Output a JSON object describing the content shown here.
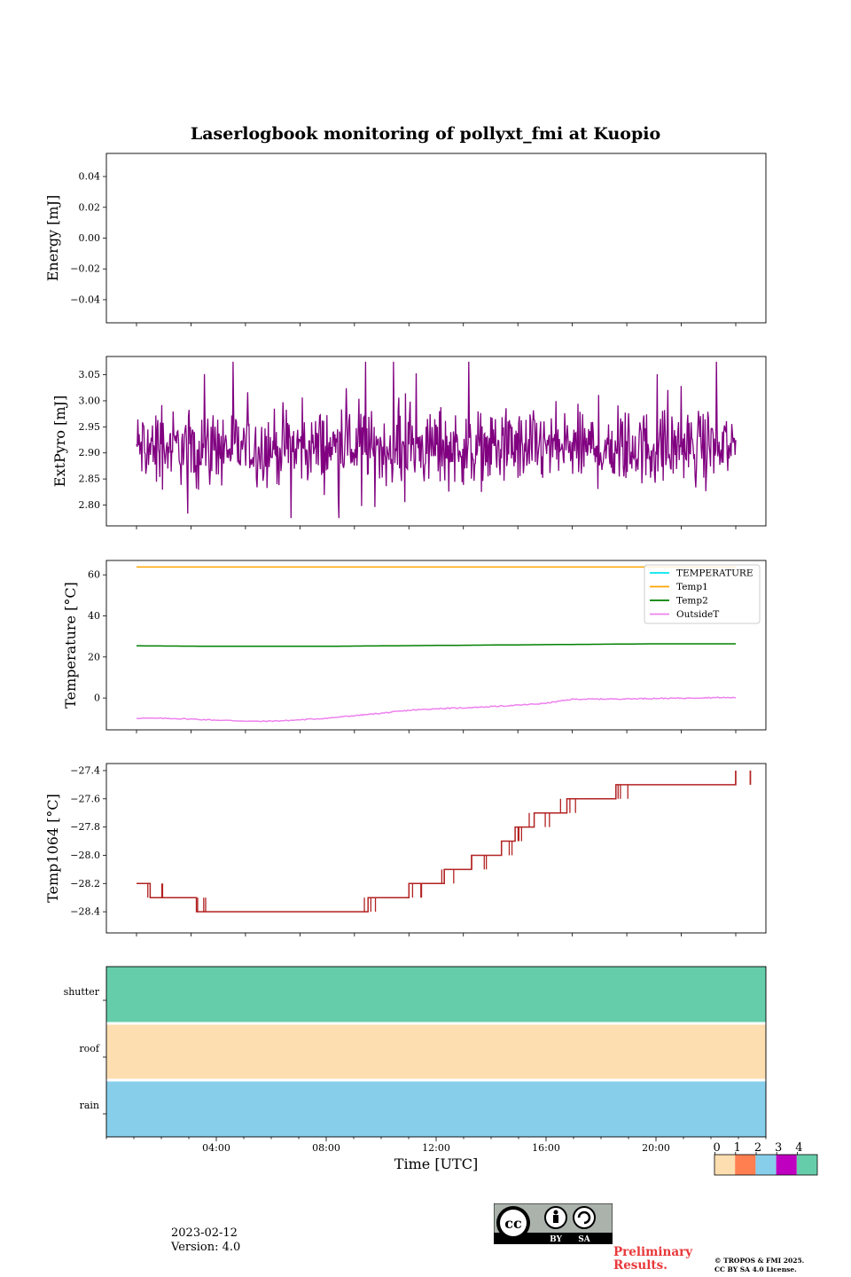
{
  "title": "Laserlogbook monitoring of pollyxt_fmi at Kuopio",
  "footer": {
    "date": "2023-02-12",
    "version": "Version: 4.0",
    "preliminary_line1": "Preliminary",
    "preliminary_line2": "Results.",
    "copyright_line1": "© TROPOS & FMI 2025.",
    "copyright_line2": "CC BY SA 4.0 License.",
    "license_badge": {
      "by": "BY",
      "sa": "SA"
    }
  },
  "chart_data": [
    {
      "type": "line",
      "panel": "energy",
      "ylabel": "Energy [mJ]",
      "ylim": [
        -0.055,
        0.055
      ],
      "yticks": [
        0.04,
        0.02,
        0.0,
        -0.02,
        -0.04
      ],
      "ytick_labels": [
        "0.04",
        "0.02",
        "0.00",
        "−0.02",
        "−0.04"
      ],
      "series": []
    },
    {
      "type": "line",
      "panel": "extpyro",
      "ylabel": "ExtPyro [mJ]",
      "ylim": [
        2.76,
        3.085
      ],
      "yticks": [
        3.05,
        3.0,
        2.95,
        2.9,
        2.85,
        2.8
      ],
      "ytick_labels": [
        "3.05",
        "3.00",
        "2.95",
        "2.90",
        "2.85",
        "2.80"
      ],
      "series": [
        {
          "name": "ExtPyro",
          "color": "#800080",
          "x_range_hours": [
            1.0,
            23.0
          ],
          "mean": 2.91,
          "min": 2.775,
          "max": 3.075,
          "noisy": true
        }
      ]
    },
    {
      "type": "line",
      "panel": "temperature",
      "ylabel": "Temperature [°C]",
      "ylim": [
        -15.5,
        67
      ],
      "yticks": [
        60,
        40,
        20,
        0
      ],
      "ytick_labels": [
        "60",
        "40",
        "20",
        "0"
      ],
      "legend": [
        "TEMPERATURE",
        "Temp1",
        "Temp2",
        "OutsideT"
      ],
      "legend_position": "top-right",
      "series": [
        {
          "name": "TEMPERATURE",
          "color": "#00e5ee",
          "x": [],
          "y": []
        },
        {
          "name": "Temp1",
          "color": "#ffa500",
          "x": [
            1,
            23
          ],
          "y": [
            63.8,
            63.8
          ]
        },
        {
          "name": "Temp2",
          "color": "#008000",
          "x": [
            1,
            4,
            8,
            12,
            16,
            20,
            23
          ],
          "y": [
            25.4,
            25.2,
            25.2,
            25.6,
            26.0,
            26.4,
            26.4
          ]
        },
        {
          "name": "OutsideT",
          "color": "#ee82ee",
          "x": [
            1,
            2.5,
            4,
            5.5,
            6.5,
            8,
            9,
            10,
            11,
            12,
            13,
            14,
            15,
            16,
            17,
            18,
            19,
            20,
            21,
            22,
            23
          ],
          "y": [
            -9.8,
            -10.0,
            -10.8,
            -11.4,
            -11.0,
            -9.8,
            -8.6,
            -7.4,
            -6.0,
            -5.2,
            -4.8,
            -4.2,
            -3.5,
            -2.6,
            -0.6,
            -0.5,
            -0.4,
            -0.2,
            -0.1,
            0.2,
            0.2
          ]
        }
      ]
    },
    {
      "type": "line",
      "panel": "temp1064",
      "ylabel": "Temp1064 [°C]",
      "ylim": [
        -28.55,
        -27.35
      ],
      "yticks": [
        -27.4,
        -27.6,
        -27.8,
        -28.0,
        -28.2,
        -28.4
      ],
      "ytick_labels": [
        "−27.4",
        "−27.6",
        "−27.8",
        "−28.0",
        "−28.2",
        "−28.4"
      ],
      "series": [
        {
          "name": "Temp1064",
          "color": "#b22222",
          "steps": [
            [
              1.0,
              -28.2
            ],
            [
              1.5,
              -28.3
            ],
            [
              3.2,
              -28.4
            ],
            [
              6.5,
              -28.4
            ],
            [
              9.5,
              -28.3
            ],
            [
              11.0,
              -28.2
            ],
            [
              12.3,
              -28.1
            ],
            [
              13.3,
              -28.0
            ],
            [
              14.4,
              -27.9
            ],
            [
              14.9,
              -27.8
            ],
            [
              15.6,
              -27.7
            ],
            [
              16.8,
              -27.6
            ],
            [
              18.6,
              -27.5
            ],
            [
              23.0,
              -27.4
            ]
          ]
        }
      ]
    },
    {
      "type": "heatmap",
      "panel": "status",
      "rows": [
        "shutter",
        "roof",
        "rain"
      ],
      "row_values": [
        4,
        0,
        2
      ],
      "xlabel": "Time [UTC]",
      "xlim": [
        0,
        24
      ],
      "xticks": [
        4,
        8,
        12,
        16,
        20
      ],
      "xtick_labels": [
        "04:00",
        "08:00",
        "12:00",
        "16:00",
        "20:00"
      ],
      "colorbar": {
        "labels": [
          "0",
          "1",
          "2",
          "3",
          "4"
        ],
        "colors": [
          "#fddeb0",
          "#ff7f50",
          "#87ceeb",
          "#c000c0",
          "#66cdaa"
        ]
      }
    }
  ]
}
